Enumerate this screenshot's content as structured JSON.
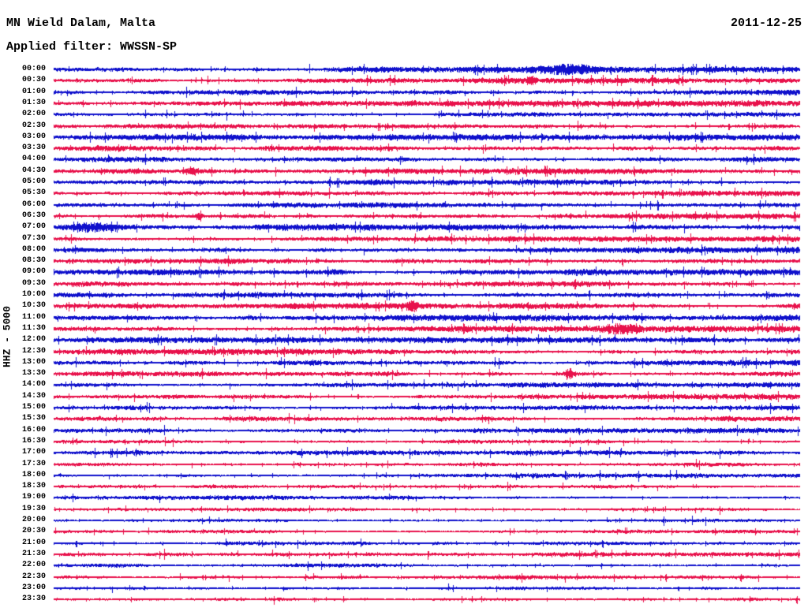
{
  "header": {
    "station_title": "MN Wield Dalam, Malta",
    "date": "2011-12-25",
    "filter_label": "Applied filter: WWSSN-SP"
  },
  "y_axis_label": "HHZ - 5000",
  "colors": {
    "blue": "#0f10cc",
    "red": "#e8114b",
    "text": "#000000",
    "background": "#ffffff"
  },
  "chart_data": {
    "type": "line",
    "subtype": "helicorder-seismogram",
    "title": "MN Wield Dalam, Malta",
    "date": "2011-12-25",
    "filter": "WWSSN-SP",
    "channel": "HHZ",
    "scale": "5000",
    "row_interval_minutes": 30,
    "first_row": "00:00",
    "last_row": "23:30",
    "color_scheme": "hour rows blue, half-hour rows red, alternating",
    "grid": "off",
    "legend": "none",
    "noise_seed": 20111225,
    "rows": [
      {
        "label": "00:00",
        "color": "blue",
        "amp": 2.2
      },
      {
        "label": "00:30",
        "color": "red",
        "amp": 1.9
      },
      {
        "label": "01:00",
        "color": "blue",
        "amp": 2.0
      },
      {
        "label": "01:30",
        "color": "red",
        "amp": 2.1
      },
      {
        "label": "02:00",
        "color": "blue",
        "amp": 1.9
      },
      {
        "label": "02:30",
        "color": "red",
        "amp": 2.0
      },
      {
        "label": "03:00",
        "color": "blue",
        "amp": 2.0
      },
      {
        "label": "03:30",
        "color": "red",
        "amp": 2.0
      },
      {
        "label": "04:00",
        "color": "blue",
        "amp": 1.8
      },
      {
        "label": "04:30",
        "color": "red",
        "amp": 1.9
      },
      {
        "label": "05:00",
        "color": "blue",
        "amp": 1.8
      },
      {
        "label": "05:30",
        "color": "red",
        "amp": 1.9
      },
      {
        "label": "06:00",
        "color": "blue",
        "amp": 1.8
      },
      {
        "label": "06:30",
        "color": "red",
        "amp": 1.9
      },
      {
        "label": "07:00",
        "color": "blue",
        "amp": 2.1
      },
      {
        "label": "07:30",
        "color": "red",
        "amp": 1.9
      },
      {
        "label": "08:00",
        "color": "blue",
        "amp": 2.0
      },
      {
        "label": "08:30",
        "color": "red",
        "amp": 1.8
      },
      {
        "label": "09:00",
        "color": "blue",
        "amp": 2.1
      },
      {
        "label": "09:30",
        "color": "red",
        "amp": 2.0
      },
      {
        "label": "10:00",
        "color": "blue",
        "amp": 2.2
      },
      {
        "label": "10:30",
        "color": "red",
        "amp": 2.0
      },
      {
        "label": "11:00",
        "color": "blue",
        "amp": 2.1
      },
      {
        "label": "11:30",
        "color": "red",
        "amp": 2.1
      },
      {
        "label": "12:00",
        "color": "blue",
        "amp": 2.0
      },
      {
        "label": "12:30",
        "color": "red",
        "amp": 2.0
      },
      {
        "label": "13:00",
        "color": "blue",
        "amp": 1.9
      },
      {
        "label": "13:30",
        "color": "red",
        "amp": 1.9
      },
      {
        "label": "14:00",
        "color": "blue",
        "amp": 1.7
      },
      {
        "label": "14:30",
        "color": "red",
        "amp": 1.8
      },
      {
        "label": "15:00",
        "color": "blue",
        "amp": 1.7
      },
      {
        "label": "15:30",
        "color": "red",
        "amp": 1.7
      },
      {
        "label": "16:00",
        "color": "blue",
        "amp": 1.8
      },
      {
        "label": "16:30",
        "color": "red",
        "amp": 1.6
      },
      {
        "label": "17:00",
        "color": "blue",
        "amp": 1.7
      },
      {
        "label": "17:30",
        "color": "red",
        "amp": 1.6
      },
      {
        "label": "18:00",
        "color": "blue",
        "amp": 1.4
      },
      {
        "label": "18:30",
        "color": "red",
        "amp": 1.4
      },
      {
        "label": "19:00",
        "color": "blue",
        "amp": 1.5
      },
      {
        "label": "19:30",
        "color": "red",
        "amp": 1.2
      },
      {
        "label": "20:00",
        "color": "blue",
        "amp": 1.3
      },
      {
        "label": "20:30",
        "color": "red",
        "amp": 1.3
      },
      {
        "label": "21:00",
        "color": "blue",
        "amp": 1.4
      },
      {
        "label": "21:30",
        "color": "red",
        "amp": 1.4
      },
      {
        "label": "22:00",
        "color": "blue",
        "amp": 1.3
      },
      {
        "label": "22:30",
        "color": "red",
        "amp": 1.4
      },
      {
        "label": "23:00",
        "color": "blue",
        "amp": 1.4
      },
      {
        "label": "23:30",
        "color": "red",
        "amp": 1.4
      }
    ],
    "events": [
      {
        "row": 0,
        "frac": 0.69,
        "mult": 1.9,
        "width": 22
      },
      {
        "row": 1,
        "frac": 0.64,
        "mult": 2.2,
        "width": 4
      },
      {
        "row": 9,
        "frac": 0.185,
        "mult": 2.2,
        "width": 5
      },
      {
        "row": 13,
        "frac": 0.195,
        "mult": 3.2,
        "width": 3
      },
      {
        "row": 14,
        "frac": 0.05,
        "mult": 2.6,
        "width": 20
      },
      {
        "row": 18,
        "frac": 0.37,
        "mult": 1.8,
        "width": 16
      },
      {
        "row": 21,
        "frac": 0.48,
        "mult": 2.6,
        "width": 4
      },
      {
        "row": 23,
        "frac": 0.76,
        "mult": 2.0,
        "width": 14
      },
      {
        "row": 27,
        "frac": 0.69,
        "mult": 3.5,
        "width": 4
      },
      {
        "row": 47,
        "frac": 0.3,
        "mult": 1.7,
        "width": 10
      }
    ]
  }
}
